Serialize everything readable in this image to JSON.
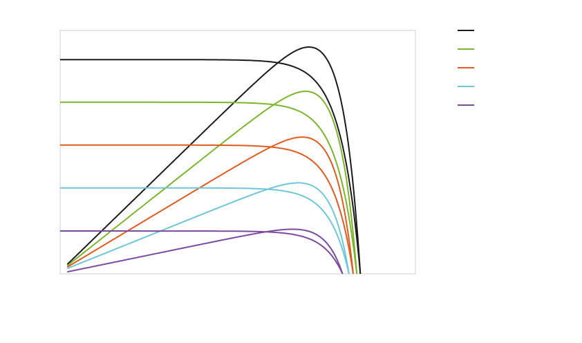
{
  "chart_data": {
    "type": "line",
    "title": "",
    "xlabel": "",
    "ylabel": "",
    "xlim": [
      0,
      1.0
    ],
    "ylim": [
      0,
      1.0
    ],
    "grid": false,
    "legend_position": "top-right",
    "series": [
      {
        "color": "#1a1a1a",
        "isc": 0.88,
        "voc": 0.845,
        "k": 0.055,
        "role": "iv"
      },
      {
        "color": "#1a1a1a",
        "isc": 0.88,
        "voc": 0.845,
        "k": 0.055,
        "role": "power",
        "pmax": 0.93
      },
      {
        "color": "#7ab62c",
        "isc": 0.705,
        "voc": 0.835,
        "k": 0.055,
        "role": "iv"
      },
      {
        "color": "#7ab62c",
        "isc": 0.705,
        "voc": 0.835,
        "k": 0.055,
        "role": "power",
        "pmax": 0.748
      },
      {
        "color": "#e15a1e",
        "isc": 0.529,
        "voc": 0.825,
        "k": 0.055,
        "role": "iv"
      },
      {
        "color": "#e15a1e",
        "isc": 0.529,
        "voc": 0.825,
        "k": 0.055,
        "role": "power",
        "pmax": 0.56
      },
      {
        "color": "#6ec6d8",
        "isc": 0.353,
        "voc": 0.813,
        "k": 0.055,
        "role": "iv"
      },
      {
        "color": "#6ec6d8",
        "isc": 0.353,
        "voc": 0.813,
        "k": 0.055,
        "role": "power",
        "pmax": 0.372
      },
      {
        "color": "#7b4aa0",
        "isc": 0.176,
        "voc": 0.795,
        "k": 0.055,
        "role": "iv"
      },
      {
        "color": "#7b4aa0",
        "isc": 0.176,
        "voc": 0.795,
        "k": 0.055,
        "role": "power",
        "pmax": 0.183
      }
    ],
    "legend": [
      {
        "color": "#1a1a1a",
        "label": ""
      },
      {
        "color": "#7ab62c",
        "label": ""
      },
      {
        "color": "#e15a1e",
        "label": ""
      },
      {
        "color": "#6ec6d8",
        "label": ""
      },
      {
        "color": "#7b4aa0",
        "label": ""
      }
    ]
  }
}
